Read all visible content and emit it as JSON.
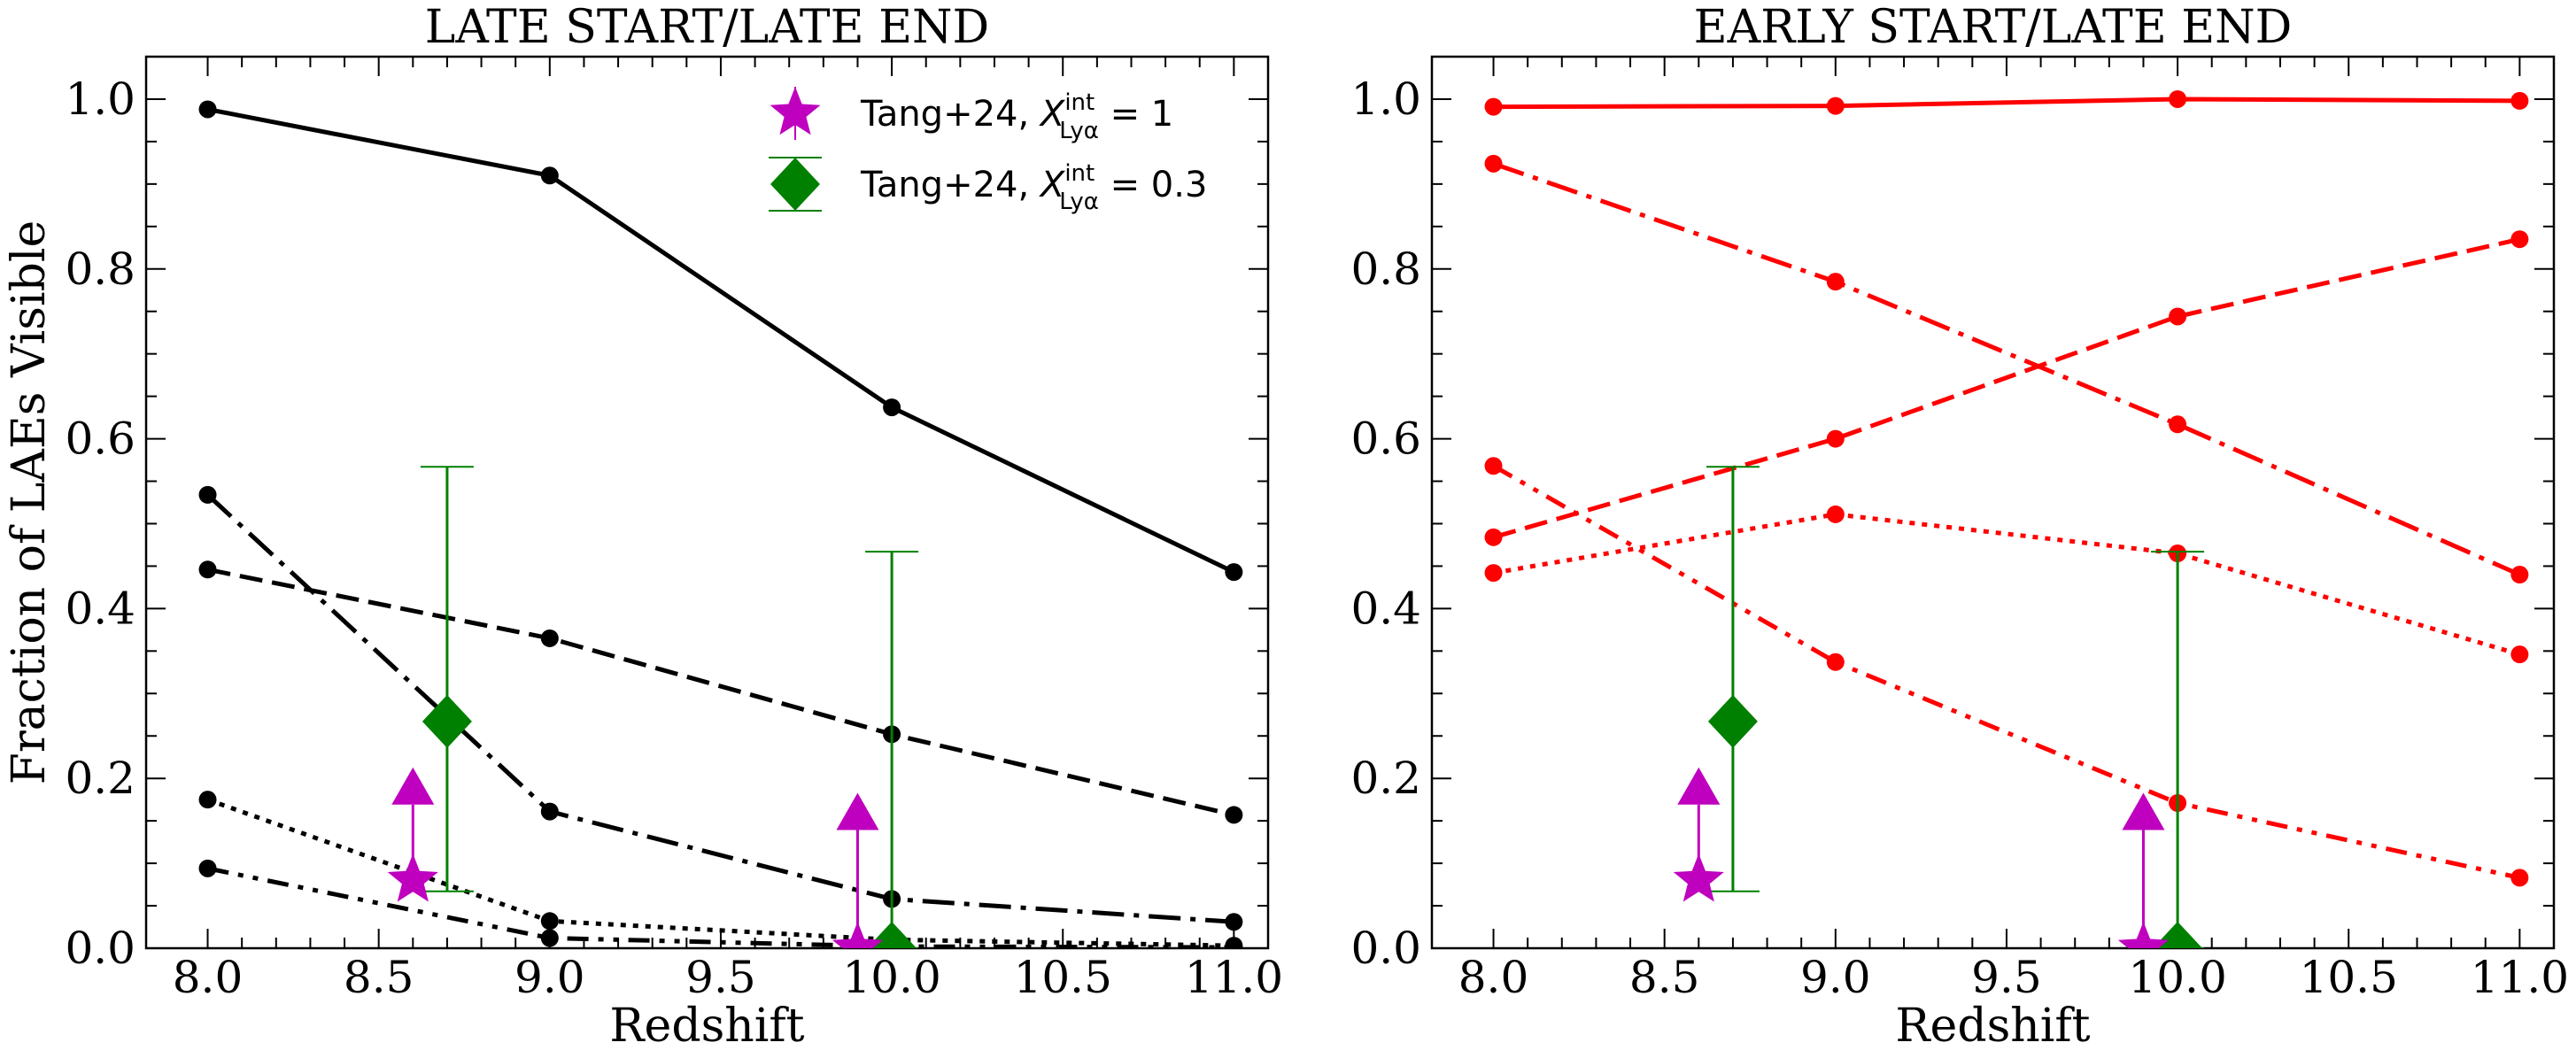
{
  "chart_data": [
    {
      "type": "line",
      "title": "LATE START/LATE END",
      "xlabel": "Redshift",
      "ylabel": "Fraction of LAEs Visible",
      "xlim": [
        7.82,
        11.1
      ],
      "ylim": [
        0.0,
        1.05
      ],
      "xticks": [
        8.0,
        8.5,
        9.0,
        9.5,
        10.0,
        10.5,
        11.0
      ],
      "xtick_labels": [
        "8.0",
        "8.5",
        "9.0",
        "9.5",
        "10.0",
        "10.5",
        "11.0"
      ],
      "yticks": [
        0.0,
        0.2,
        0.4,
        0.6,
        0.8,
        1.0
      ],
      "ytick_labels": [
        "0.0",
        "0.2",
        "0.4",
        "0.6",
        "0.8",
        "1.0"
      ],
      "color": "#000000",
      "x": [
        8.0,
        9.0,
        10.0,
        11.0
      ],
      "series": [
        {
          "style": "solid",
          "values": [
            0.988,
            0.91,
            0.637,
            0.443
          ]
        },
        {
          "style": "dashed",
          "values": [
            0.446,
            0.365,
            0.252,
            0.157
          ]
        },
        {
          "style": "dashdot",
          "values": [
            0.534,
            0.161,
            0.058,
            0.031
          ]
        },
        {
          "style": "dotted",
          "values": [
            0.175,
            0.032,
            0.01,
            0.003
          ]
        },
        {
          "style": "dashdotdot",
          "values": [
            0.094,
            0.012,
            0.002,
            0.001
          ]
        }
      ]
    },
    {
      "type": "line",
      "title": "EARLY START/LATE END",
      "xlabel": "Redshift",
      "ylabel": "",
      "xlim": [
        7.82,
        11.1
      ],
      "ylim": [
        0.0,
        1.05
      ],
      "xticks": [
        8.0,
        8.5,
        9.0,
        9.5,
        10.0,
        10.5,
        11.0
      ],
      "xtick_labels": [
        "8.0",
        "8.5",
        "9.0",
        "9.5",
        "10.0",
        "10.5",
        "11.0"
      ],
      "yticks": [
        0.0,
        0.2,
        0.4,
        0.6,
        0.8,
        1.0
      ],
      "ytick_labels": [
        "0.0",
        "0.2",
        "0.4",
        "0.6",
        "0.8",
        "1.0"
      ],
      "color": "#ff0000",
      "x": [
        8.0,
        9.0,
        10.0,
        11.0
      ],
      "series": [
        {
          "style": "solid",
          "values": [
            0.991,
            0.992,
            1.0,
            0.998
          ]
        },
        {
          "style": "dashdot",
          "values": [
            0.924,
            0.785,
            0.617,
            0.44
          ]
        },
        {
          "style": "dashed",
          "values": [
            0.484,
            0.6,
            0.744,
            0.835
          ]
        },
        {
          "style": "dotted",
          "values": [
            0.442,
            0.511,
            0.465,
            0.346
          ]
        },
        {
          "style": "dashdotdot",
          "values": [
            0.568,
            0.337,
            0.171,
            0.083
          ]
        }
      ]
    }
  ],
  "observations": {
    "tang_x1": {
      "label_prefix": "Tang+24, ",
      "label_var": "X",
      "label_sup": "int",
      "label_sub": "Lyα",
      "label_value": " = 1",
      "color": "#bf00bf",
      "marker": "star",
      "points": [
        {
          "x": 8.6,
          "y": 0.08,
          "lower_limit_to": 0.19
        },
        {
          "x": 9.9,
          "y": 0.0,
          "lower_limit_to": 0.16
        }
      ]
    },
    "tang_x03": {
      "label_prefix": "Tang+24, ",
      "label_var": "X",
      "label_sup": "int",
      "label_sub": "Lyα",
      "label_value": " = 0.3",
      "color": "#008000",
      "marker": "diamond",
      "points": [
        {
          "x": 8.7,
          "y": 0.267,
          "err_low": 0.067,
          "err_high": 0.567
        },
        {
          "x": 10.0,
          "y": 0.0,
          "err_low": 0.0,
          "err_high": 0.467
        }
      ]
    }
  }
}
